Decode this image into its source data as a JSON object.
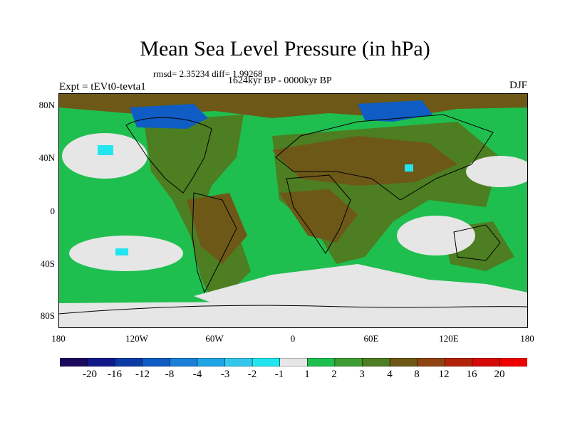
{
  "title": "Mean Sea Level Pressure (in hPa)",
  "stats": "rmsd= 2.35234  diff= 1.99268",
  "period": "1624kyr BP - 0000kyr BP",
  "experiment": "Expt = tEVt0-tevta1",
  "season": "DJF",
  "lat_labels": [
    "80N",
    "40N",
    "0",
    "40S",
    "80S"
  ],
  "lon_labels": [
    "180",
    "120W",
    "60W",
    "0",
    "60E",
    "120E",
    "180"
  ],
  "colorbar": {
    "labels": [
      "-20",
      "-16",
      "-12",
      "-8",
      "-4",
      "-3",
      "-2",
      "-1",
      "1",
      "2",
      "3",
      "4",
      "8",
      "12",
      "16",
      "20"
    ],
    "colors": [
      "#1a0a5e",
      "#121a8a",
      "#0d3ba6",
      "#0f5cc4",
      "#1b7fd8",
      "#1fa5e6",
      "#33c7ee",
      "#22e6ef",
      "#e6e6e6",
      "#1fbf4f",
      "#3e9e34",
      "#4d7e22",
      "#6d5818",
      "#8f4212",
      "#b2240a",
      "#d40808",
      "#ee0000"
    ]
  },
  "colors": {
    "land_base": "#4d7e22",
    "ocean_base": "#1fbf4f",
    "neutral": "#e6e6e6",
    "low": "#22e6ef",
    "deep_low": "#0f5cc4",
    "high": "#6d5818"
  }
}
